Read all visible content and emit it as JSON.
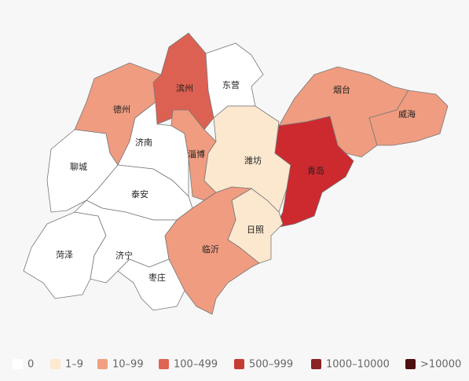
{
  "map": {
    "regions": [
      {
        "name": "滨州",
        "color": "#dd6152"
      },
      {
        "name": "东营",
        "color": "#ffffff"
      },
      {
        "name": "德州",
        "color": "#f09c80"
      },
      {
        "name": "济南",
        "color": "#ffffff"
      },
      {
        "name": "淄博",
        "color": "#f09c80"
      },
      {
        "name": "潍坊",
        "color": "#fce8cf"
      },
      {
        "name": "青岛",
        "color": "#cc2a2f"
      },
      {
        "name": "烟台",
        "color": "#f09c80"
      },
      {
        "name": "威海",
        "color": "#f09c80"
      },
      {
        "name": "聊城",
        "color": "#ffffff"
      },
      {
        "name": "泰安",
        "color": "#ffffff"
      },
      {
        "name": "日照",
        "color": "#fce8cf"
      },
      {
        "name": "临沂",
        "color": "#f09c80"
      },
      {
        "name": "菏泽",
        "color": "#ffffff"
      },
      {
        "name": "济宁",
        "color": "#ffffff"
      },
      {
        "name": "枣庄",
        "color": "#ffffff"
      }
    ],
    "legend": [
      {
        "label": "0",
        "color": "#ffffff"
      },
      {
        "label": "1–9",
        "color": "#fde9cf"
      },
      {
        "label": "10–99",
        "color": "#f0a081"
      },
      {
        "label": "100–499",
        "color": "#dd6551"
      },
      {
        "label": "500–999",
        "color": "#c53c34"
      },
      {
        "label": "1000–10000",
        "color": "#8a2125"
      },
      {
        "label": ">10000",
        "color": "#4f0e10"
      }
    ]
  }
}
